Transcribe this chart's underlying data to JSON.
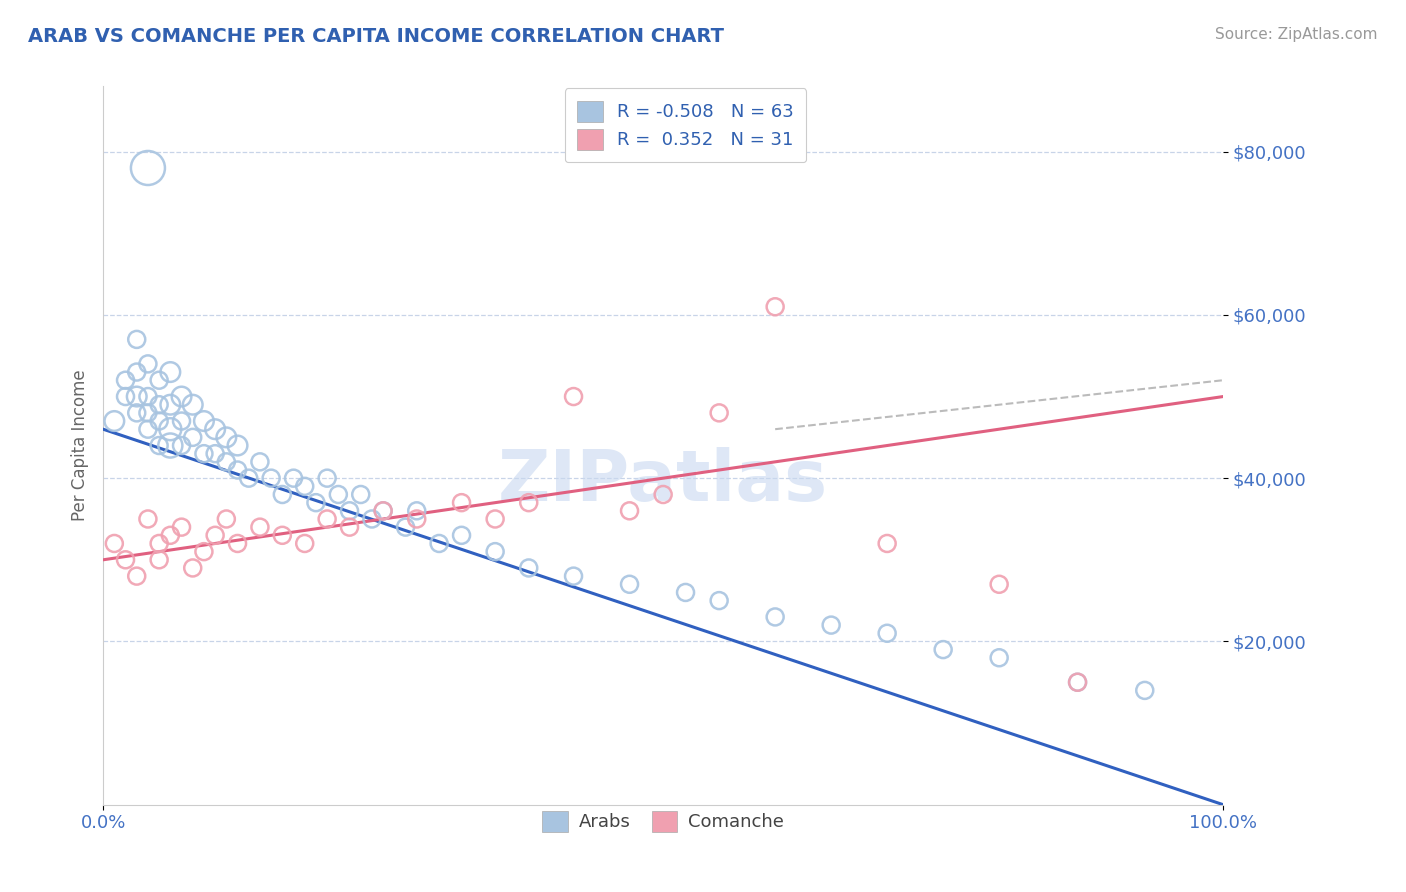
{
  "title": "ARAB VS COMANCHE PER CAPITA INCOME CORRELATION CHART",
  "source": "Source: ZipAtlas.com",
  "ylabel": "Per Capita Income",
  "xlim": [
    0.0,
    1.0
  ],
  "ylim": [
    0,
    88000
  ],
  "yticks": [
    20000,
    40000,
    60000,
    80000
  ],
  "ytick_labels": [
    "$20,000",
    "$40,000",
    "$60,000",
    "$80,000"
  ],
  "xtick_labels": [
    "0.0%",
    "100.0%"
  ],
  "arab_color": "#a8c4e0",
  "comanche_color": "#f0a0b0",
  "arab_line_color": "#3060c0",
  "comanche_line_color": "#e06080",
  "arab_R": -0.508,
  "arab_N": 63,
  "comanche_R": 0.352,
  "comanche_N": 31,
  "background_color": "#ffffff",
  "grid_color": "#c8d4e8",
  "title_color": "#3060b0",
  "ylabel_color": "#666666",
  "ytick_color": "#4472c4",
  "watermark": "ZIPatlas",
  "arab_scatter_x": [
    0.01,
    0.02,
    0.02,
    0.03,
    0.03,
    0.03,
    0.03,
    0.04,
    0.04,
    0.04,
    0.04,
    0.04,
    0.05,
    0.05,
    0.05,
    0.05,
    0.06,
    0.06,
    0.06,
    0.06,
    0.07,
    0.07,
    0.07,
    0.08,
    0.08,
    0.09,
    0.09,
    0.1,
    0.1,
    0.11,
    0.11,
    0.12,
    0.12,
    0.13,
    0.14,
    0.15,
    0.16,
    0.17,
    0.18,
    0.19,
    0.2,
    0.21,
    0.22,
    0.23,
    0.24,
    0.25,
    0.27,
    0.28,
    0.3,
    0.32,
    0.35,
    0.38,
    0.42,
    0.47,
    0.52,
    0.55,
    0.6,
    0.65,
    0.7,
    0.75,
    0.8,
    0.87,
    0.93
  ],
  "arab_scatter_y": [
    47000,
    50000,
    52000,
    48000,
    50000,
    53000,
    57000,
    46000,
    48000,
    50000,
    54000,
    78000,
    44000,
    47000,
    49000,
    52000,
    44000,
    46000,
    49000,
    53000,
    44000,
    47000,
    50000,
    45000,
    49000,
    43000,
    47000,
    43000,
    46000,
    42000,
    45000,
    41000,
    44000,
    40000,
    42000,
    40000,
    38000,
    40000,
    39000,
    37000,
    40000,
    38000,
    36000,
    38000,
    35000,
    36000,
    34000,
    36000,
    32000,
    33000,
    31000,
    29000,
    28000,
    27000,
    26000,
    25000,
    23000,
    22000,
    21000,
    19000,
    18000,
    15000,
    14000
  ],
  "arab_scatter_size": [
    200,
    150,
    150,
    150,
    200,
    150,
    150,
    150,
    150,
    150,
    150,
    600,
    150,
    150,
    150,
    150,
    300,
    250,
    200,
    200,
    150,
    150,
    200,
    150,
    200,
    150,
    200,
    150,
    200,
    150,
    200,
    150,
    200,
    150,
    150,
    150,
    150,
    150,
    150,
    150,
    150,
    150,
    150,
    150,
    150,
    150,
    150,
    150,
    150,
    150,
    150,
    150,
    150,
    150,
    150,
    150,
    150,
    150,
    150,
    150,
    150,
    150,
    150
  ],
  "comanche_scatter_x": [
    0.01,
    0.02,
    0.03,
    0.04,
    0.05,
    0.05,
    0.06,
    0.07,
    0.08,
    0.09,
    0.1,
    0.11,
    0.12,
    0.14,
    0.16,
    0.18,
    0.2,
    0.22,
    0.25,
    0.28,
    0.32,
    0.35,
    0.38,
    0.42,
    0.47,
    0.5,
    0.55,
    0.6,
    0.7,
    0.8,
    0.87
  ],
  "comanche_scatter_y": [
    32000,
    30000,
    28000,
    35000,
    32000,
    30000,
    33000,
    34000,
    29000,
    31000,
    33000,
    35000,
    32000,
    34000,
    33000,
    32000,
    35000,
    34000,
    36000,
    35000,
    37000,
    35000,
    37000,
    50000,
    36000,
    38000,
    48000,
    61000,
    32000,
    27000,
    15000
  ],
  "comanche_scatter_size": [
    150,
    150,
    150,
    150,
    150,
    150,
    150,
    150,
    150,
    150,
    150,
    150,
    150,
    150,
    150,
    150,
    150,
    150,
    150,
    150,
    150,
    150,
    150,
    150,
    150,
    150,
    150,
    150,
    150,
    150,
    150
  ],
  "arab_line_x": [
    0.0,
    1.0
  ],
  "arab_line_y": [
    46000,
    0
  ],
  "comanche_line_x": [
    0.0,
    1.0
  ],
  "comanche_line_y": [
    30000,
    50000
  ],
  "dash_line_x": [
    0.6,
    1.0
  ],
  "dash_line_y": [
    46000,
    52000
  ]
}
